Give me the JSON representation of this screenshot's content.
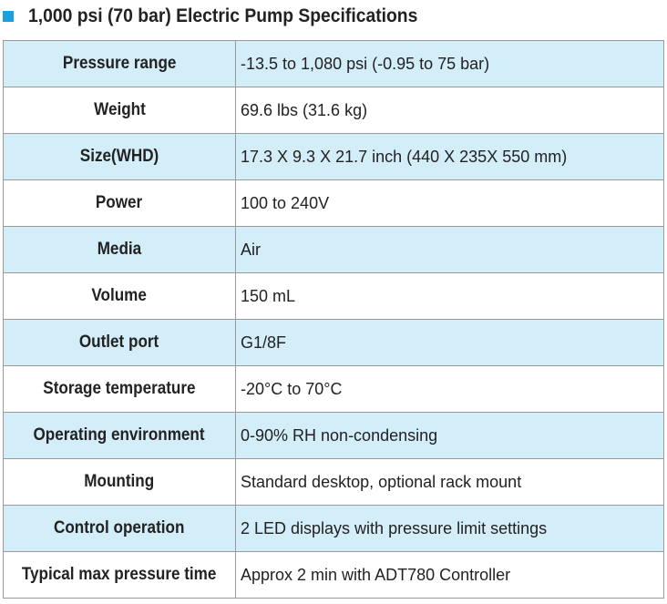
{
  "title": "1,000 psi (70 bar) Electric Pump Specifications",
  "table": {
    "rows": [
      [
        "Pressure range",
        "-13.5 to 1,080 psi (-0.95 to 75 bar)"
      ],
      [
        "Weight",
        "69.6 lbs (31.6 kg)"
      ],
      [
        "Size(WHD)",
        "17.3 X 9.3 X 21.7 inch (440 X 235X 550 mm)"
      ],
      [
        "Power",
        "100 to 240V"
      ],
      [
        "Media",
        "Air"
      ],
      [
        "Volume",
        "150 mL"
      ],
      [
        "Outlet port",
        "G1/8F"
      ],
      [
        "Storage temperature",
        "-20°C to 70°C"
      ],
      [
        "Operating environment",
        "0-90% RH non-condensing"
      ],
      [
        "Mounting",
        "Standard desktop, optional rack mount"
      ],
      [
        "Control operation",
        "2 LED displays with pressure limit settings"
      ],
      [
        "Typical max pressure time",
        "Approx 2 min with ADT780 Controller"
      ]
    ]
  }
}
